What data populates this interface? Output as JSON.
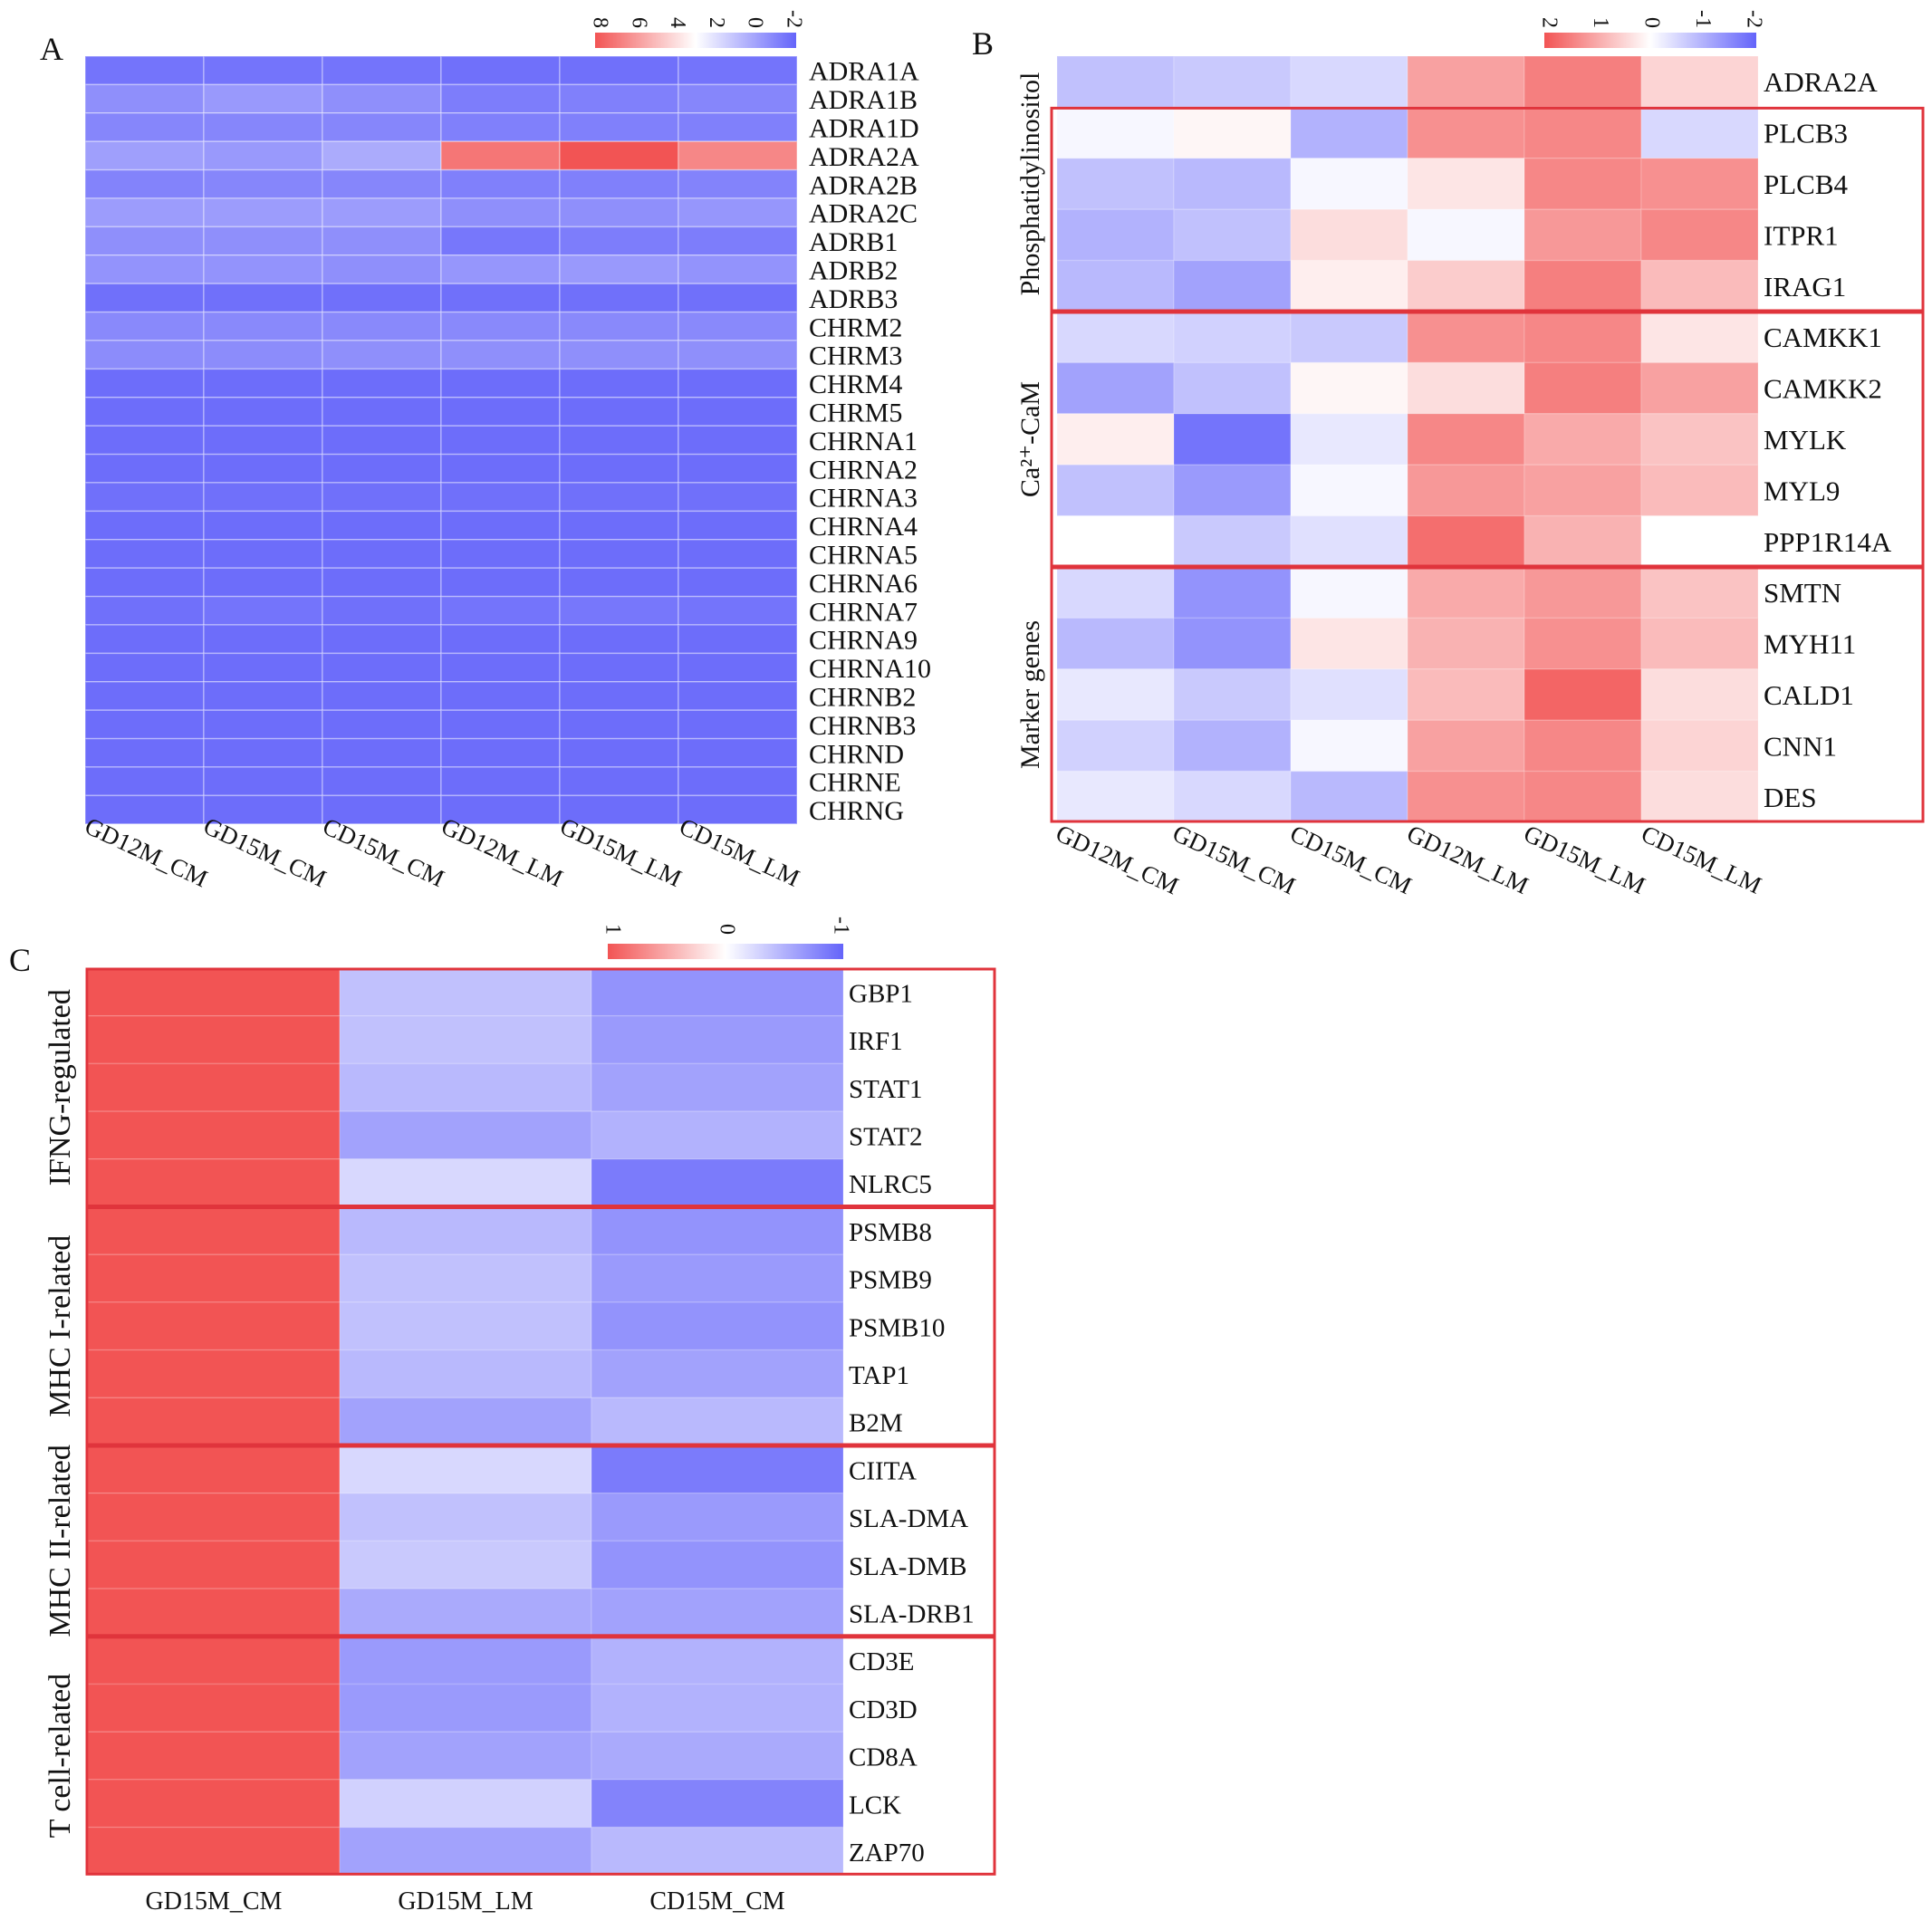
{
  "colors": {
    "high": "#f25454",
    "mid": "#ffffff",
    "low": "#6464fa",
    "box": "#e0343c"
  },
  "chart_data": [
    {
      "type": "heatmap",
      "panel_label": "A",
      "legend_ticks": [
        "8",
        "6",
        "4",
        "2",
        "0",
        "-2"
      ],
      "legend_range": [
        -2,
        8
      ],
      "columns": [
        "GD12M_CM",
        "GD15M_CM",
        "CD15M_CM",
        "GD12M_LM",
        "GD15M_LM",
        "CD15M_LM"
      ],
      "rows": [
        "ADRA1A",
        "ADRA1B",
        "ADRA1D",
        "ADRA2A",
        "ADRA2B",
        "ADRA2C",
        "ADRB1",
        "ADRB2",
        "ADRB3",
        "CHRM2",
        "CHRM3",
        "CHRM4",
        "CHRM5",
        "CHRNA1",
        "CHRNA2",
        "CHRNA3",
        "CHRNA4",
        "CHRNA5",
        "CHRNA6",
        "CHRNA7",
        "CHRNA9",
        "CHRNA10",
        "CHRNB2",
        "CHRNB3",
        "CHRND",
        "CHRNE",
        "CHRNG"
      ],
      "values": [
        [
          -1.5,
          -1.5,
          -1.5,
          -1.6,
          -1.6,
          -1.5
        ],
        [
          -0.6,
          -0.3,
          -0.6,
          -1.2,
          -1.1,
          -0.9
        ],
        [
          -0.9,
          -0.9,
          -0.9,
          -1.1,
          -1.1,
          -1.1
        ],
        [
          -0.1,
          -0.3,
          0.3,
          7.0,
          8.0,
          6.5
        ],
        [
          -1.0,
          -0.9,
          -0.9,
          -1.1,
          -1.1,
          -1.0
        ],
        [
          -0.2,
          -0.2,
          -0.2,
          -0.6,
          -0.6,
          -0.4
        ],
        [
          -0.6,
          -0.6,
          -0.6,
          -1.4,
          -1.2,
          -1.2
        ],
        [
          -0.5,
          -0.5,
          -0.6,
          -0.4,
          -0.3,
          -0.5
        ],
        [
          -1.6,
          -1.6,
          -1.6,
          -1.6,
          -1.6,
          -1.6
        ],
        [
          -0.8,
          -0.8,
          -0.8,
          -0.8,
          -0.8,
          -0.8
        ],
        [
          -0.7,
          -0.7,
          -0.6,
          -0.6,
          -0.6,
          -0.6
        ],
        [
          -1.7,
          -1.7,
          -1.7,
          -1.7,
          -1.7,
          -1.7
        ],
        [
          -1.7,
          -1.7,
          -1.7,
          -1.7,
          -1.7,
          -1.7
        ],
        [
          -1.7,
          -1.7,
          -1.7,
          -1.7,
          -1.7,
          -1.7
        ],
        [
          -1.7,
          -1.7,
          -1.7,
          -1.7,
          -1.7,
          -1.7
        ],
        [
          -1.6,
          -1.6,
          -1.6,
          -1.6,
          -1.6,
          -1.6
        ],
        [
          -1.7,
          -1.7,
          -1.7,
          -1.7,
          -1.7,
          -1.7
        ],
        [
          -1.7,
          -1.7,
          -1.7,
          -1.7,
          -1.7,
          -1.7
        ],
        [
          -1.7,
          -1.7,
          -1.7,
          -1.7,
          -1.7,
          -1.7
        ],
        [
          -1.6,
          -1.5,
          -1.6,
          -1.5,
          -1.4,
          -1.5
        ],
        [
          -1.7,
          -1.7,
          -1.7,
          -1.7,
          -1.7,
          -1.7
        ],
        [
          -1.7,
          -1.7,
          -1.7,
          -1.7,
          -1.7,
          -1.7
        ],
        [
          -1.7,
          -1.7,
          -1.7,
          -1.7,
          -1.7,
          -1.7
        ],
        [
          -1.7,
          -1.7,
          -1.7,
          -1.7,
          -1.7,
          -1.7
        ],
        [
          -1.7,
          -1.7,
          -1.7,
          -1.7,
          -1.7,
          -1.7
        ],
        [
          -1.7,
          -1.7,
          -1.7,
          -1.7,
          -1.7,
          -1.7
        ],
        [
          -1.7,
          -1.7,
          -1.7,
          -1.7,
          -1.7,
          -1.7
        ]
      ]
    },
    {
      "type": "heatmap",
      "panel_label": "B",
      "legend_ticks": [
        "2",
        "1",
        "0",
        "-1",
        "-2"
      ],
      "legend_range": [
        -2,
        2
      ],
      "columns": [
        "GD12M_CM",
        "GD15M_CM",
        "CD15M_CM",
        "GD12M_LM",
        "GD15M_LM",
        "CD15M_LM"
      ],
      "rows": [
        "ADRA2A",
        "PLCB3",
        "PLCB4",
        "ITPR1",
        "IRAG1",
        "CAMKK1",
        "CAMKK2",
        "MYLK",
        "MYL9",
        "PPP1R14A",
        "SMTN",
        "MYH11",
        "CALD1",
        "CNN1",
        "DES"
      ],
      "groups": [
        {
          "label": "Phosphatidylinositol",
          "rows": [
            1,
            4
          ]
        },
        {
          "label": "Ca²⁺-CaM",
          "rows": [
            5,
            9
          ]
        },
        {
          "label": "Marker genes",
          "rows": [
            10,
            14
          ]
        }
      ],
      "values": [
        [
          -0.8,
          -0.7,
          -0.5,
          1.1,
          1.5,
          0.5
        ],
        [
          -0.1,
          0.1,
          -1.0,
          1.3,
          1.4,
          -0.5
        ],
        [
          -0.8,
          -0.9,
          -0.1,
          0.3,
          1.4,
          1.3
        ],
        [
          -1.0,
          -0.8,
          0.4,
          -0.1,
          1.2,
          1.4
        ],
        [
          -0.9,
          -1.2,
          0.2,
          0.6,
          1.5,
          0.8
        ],
        [
          -0.5,
          -0.6,
          -0.7,
          1.3,
          1.4,
          0.3
        ],
        [
          -1.2,
          -0.8,
          0.1,
          0.4,
          1.5,
          1.1
        ],
        [
          0.2,
          -1.8,
          -0.3,
          1.4,
          1.0,
          0.7
        ],
        [
          -0.8,
          -1.3,
          -0.1,
          1.2,
          1.1,
          0.8
        ],
        [
          0.0,
          -0.7,
          -0.4,
          1.7,
          0.9,
          0.0
        ],
        [
          -0.5,
          -1.4,
          -0.1,
          1.0,
          1.2,
          0.7
        ],
        [
          -0.9,
          -1.4,
          0.3,
          0.9,
          1.3,
          0.8
        ],
        [
          -0.3,
          -0.7,
          -0.4,
          0.8,
          1.8,
          0.4
        ],
        [
          -0.6,
          -1.0,
          -0.1,
          1.1,
          1.4,
          0.5
        ],
        [
          -0.3,
          -0.5,
          -0.9,
          1.3,
          1.4,
          0.4
        ]
      ]
    },
    {
      "type": "heatmap",
      "panel_label": "C",
      "legend_ticks": [
        "1",
        "0",
        "-1"
      ],
      "legend_range": [
        -1,
        1
      ],
      "columns": [
        "GD15M_CM",
        "GD15M_LM",
        "CD15M_CM"
      ],
      "rows": [
        "GBP1",
        "IRF1",
        "STAT1",
        "STAT2",
        "NLRC5",
        "PSMB8",
        "PSMB9",
        "PSMB10",
        "TAP1",
        "B2M",
        "CIITA",
        "SLA-DMA",
        "SLA-DMB",
        "SLA-DRB1",
        "CD3E",
        "CD3D",
        "CD8A",
        "LCK",
        "ZAP70"
      ],
      "groups": [
        {
          "label": "IFNG-regulated",
          "rows": [
            0,
            4
          ]
        },
        {
          "label": "MHC I-related",
          "rows": [
            5,
            9
          ]
        },
        {
          "label": "MHC II-related",
          "rows": [
            10,
            13
          ]
        },
        {
          "label": "T cell-related",
          "rows": [
            14,
            18
          ]
        }
      ],
      "values": [
        [
          1.0,
          -0.4,
          -0.7
        ],
        [
          1.0,
          -0.4,
          -0.65
        ],
        [
          1.0,
          -0.45,
          -0.6
        ],
        [
          1.0,
          -0.6,
          -0.5
        ],
        [
          1.0,
          -0.25,
          -0.85
        ],
        [
          1.0,
          -0.45,
          -0.7
        ],
        [
          1.0,
          -0.4,
          -0.65
        ],
        [
          1.0,
          -0.4,
          -0.7
        ],
        [
          1.0,
          -0.45,
          -0.6
        ],
        [
          1.0,
          -0.6,
          -0.45
        ],
        [
          1.0,
          -0.25,
          -0.85
        ],
        [
          1.0,
          -0.4,
          -0.65
        ],
        [
          1.0,
          -0.35,
          -0.7
        ],
        [
          1.0,
          -0.55,
          -0.6
        ],
        [
          1.0,
          -0.65,
          -0.5
        ],
        [
          1.0,
          -0.65,
          -0.5
        ],
        [
          1.0,
          -0.6,
          -0.55
        ],
        [
          1.0,
          -0.3,
          -0.8
        ],
        [
          1.0,
          -0.6,
          -0.45
        ]
      ]
    }
  ]
}
